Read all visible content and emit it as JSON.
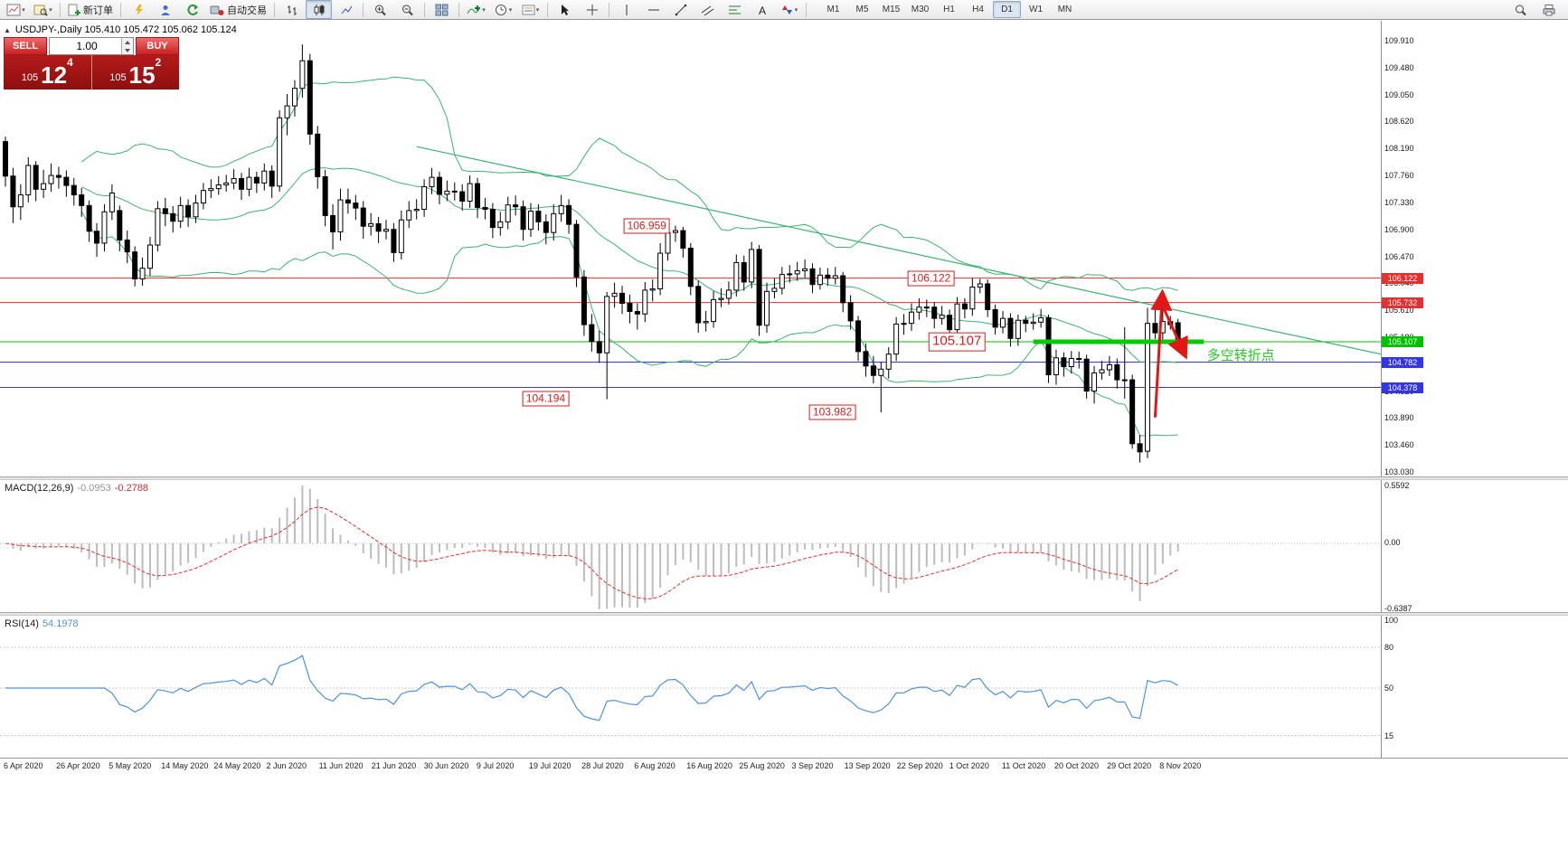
{
  "toolbar": {
    "new_order_label": "新订单",
    "autotrading_label": "自动交易",
    "timeframes": [
      "M1",
      "M5",
      "M15",
      "M30",
      "H1",
      "H4",
      "D1",
      "W1",
      "MN"
    ],
    "active_timeframe": "D1"
  },
  "chart": {
    "collapse_arrow": "▲",
    "info_line": "USDJPY-,Daily 105.410 105.472 105.062 105.124",
    "one_click": {
      "sell_label": "SELL",
      "buy_label": "BUY",
      "volume": "1.00",
      "sell_small": "105",
      "sell_big": "12",
      "sell_sup": "4",
      "buy_small": "105",
      "buy_big": "15",
      "buy_sup": "2"
    }
  },
  "macd": {
    "label": "MACD(12,26,9)",
    "value_main": "-0.0953",
    "value_signal": "-0.2788",
    "scale_top": "0.5592",
    "scale_zero": "0.00",
    "scale_bottom": "-0.6387"
  },
  "rsi": {
    "label": "RSI(14)",
    "value": "54.1978",
    "scale": [
      {
        "label": "100",
        "value": 100
      },
      {
        "label": "80",
        "value": 80
      },
      {
        "label": "50",
        "value": 50
      },
      {
        "label": "15",
        "value": 15
      }
    ],
    "levels": [
      80,
      50,
      15
    ]
  },
  "colors": {
    "bollinger": "#3CB371",
    "trendline": "#3CB371",
    "hline_red": "#e53030",
    "hline_blue": "#3535e8",
    "hline_green": "#00c300",
    "thick_green": "#00cc00",
    "annotation_red": "#d02020",
    "arrow_red": "#e01818",
    "macd_hist": "#bdbdbd",
    "macd_signal": "#e03030",
    "rsi_line": "#4f94d6",
    "trade_red": "#c92222",
    "price_panel_red": "#9e1515"
  },
  "chart_data": {
    "type": "candlestick",
    "symbol": "USDJPY-",
    "timeframe": "Daily",
    "y_max": 109.91,
    "y_min": 103.03,
    "y_ticks": [
      "109.910",
      "109.480",
      "109.050",
      "108.620",
      "108.190",
      "107.760",
      "107.330",
      "106.900",
      "106.470",
      "106.040",
      "105.610",
      "105.180",
      "104.750",
      "104.320",
      "103.890",
      "103.460",
      "103.030"
    ],
    "x_labels": [
      "6 Apr 2020",
      "26 Apr 2020",
      "5 May 2020",
      "14 May 2020",
      "24 May 2020",
      "2 Jun 2020",
      "11 Jun 2020",
      "21 Jun 2020",
      "30 Jun 2020",
      "9 Jul 2020",
      "19 Jul 2020",
      "28 Jul 2020",
      "6 Aug 2020",
      "16 Aug 2020",
      "25 Aug 2020",
      "3 Sep 2020",
      "13 Sep 2020",
      "22 Sep 2020",
      "1 Oct 2020",
      "11 Oct 2020",
      "20 Oct 2020",
      "29 Oct 2020",
      "8 Nov 2020"
    ],
    "candles": [
      [
        108.3,
        108.38,
        107.58,
        107.75
      ],
      [
        107.75,
        107.88,
        107.0,
        107.26
      ],
      [
        107.26,
        107.62,
        107.05,
        107.45
      ],
      [
        107.45,
        108.05,
        107.33,
        107.92
      ],
      [
        107.92,
        107.99,
        107.35,
        107.54
      ],
      [
        107.54,
        107.85,
        107.4,
        107.63
      ],
      [
        107.63,
        107.95,
        107.5,
        107.76
      ],
      [
        107.76,
        107.9,
        107.55,
        107.73
      ],
      [
        107.73,
        107.84,
        107.42,
        107.6
      ],
      [
        107.6,
        107.72,
        107.28,
        107.45
      ],
      [
        107.45,
        107.56,
        107.1,
        107.28
      ],
      [
        107.28,
        107.36,
        106.7,
        106.87
      ],
      [
        106.87,
        107.0,
        106.46,
        106.68
      ],
      [
        106.68,
        107.3,
        106.55,
        107.18
      ],
      [
        107.18,
        107.62,
        107.05,
        107.48
      ],
      [
        107.2,
        107.28,
        106.55,
        106.73
      ],
      [
        106.73,
        106.88,
        106.36,
        106.54
      ],
      [
        106.54,
        106.63,
        105.99,
        106.11
      ],
      [
        106.11,
        106.45,
        106.0,
        106.28
      ],
      [
        106.28,
        106.78,
        106.16,
        106.65
      ],
      [
        106.65,
        107.35,
        106.55,
        107.23
      ],
      [
        107.23,
        107.4,
        106.95,
        107.15
      ],
      [
        107.15,
        107.27,
        106.85,
        107.03
      ],
      [
        107.03,
        107.42,
        106.92,
        107.28
      ],
      [
        107.28,
        107.38,
        106.94,
        107.1
      ],
      [
        107.1,
        107.45,
        107.0,
        107.32
      ],
      [
        107.32,
        107.64,
        107.22,
        107.52
      ],
      [
        107.52,
        107.7,
        107.4,
        107.55
      ],
      [
        107.55,
        107.75,
        107.45,
        107.61
      ],
      [
        107.61,
        107.77,
        107.5,
        107.64
      ],
      [
        107.64,
        107.86,
        107.54,
        107.71
      ],
      [
        107.71,
        107.8,
        107.37,
        107.54
      ],
      [
        107.54,
        107.88,
        107.43,
        107.73
      ],
      [
        107.73,
        107.82,
        107.48,
        107.64
      ],
      [
        107.64,
        107.95,
        107.52,
        107.83
      ],
      [
        107.83,
        107.92,
        107.4,
        107.59
      ],
      [
        107.59,
        108.8,
        107.5,
        108.68
      ],
      [
        108.68,
        109.06,
        108.4,
        108.87
      ],
      [
        108.87,
        109.28,
        108.7,
        109.15
      ],
      [
        109.15,
        109.85,
        109.0,
        109.59
      ],
      [
        109.59,
        109.7,
        108.25,
        108.42
      ],
      [
        108.42,
        108.55,
        107.55,
        107.74
      ],
      [
        107.74,
        107.85,
        106.95,
        107.12
      ],
      [
        107.12,
        107.3,
        106.58,
        106.86
      ],
      [
        106.86,
        107.55,
        106.72,
        107.37
      ],
      [
        107.37,
        107.55,
        107.15,
        107.32
      ],
      [
        107.32,
        107.45,
        107.05,
        107.24
      ],
      [
        107.24,
        107.35,
        106.75,
        106.95
      ],
      [
        106.95,
        107.16,
        106.8,
        106.99
      ],
      [
        106.99,
        107.1,
        106.68,
        106.87
      ],
      [
        106.87,
        107.05,
        106.74,
        106.9
      ],
      [
        106.9,
        107.0,
        106.38,
        106.53
      ],
      [
        106.53,
        107.2,
        106.42,
        107.05
      ],
      [
        107.05,
        107.35,
        106.92,
        107.2
      ],
      [
        107.2,
        107.38,
        107.06,
        107.22
      ],
      [
        107.22,
        107.7,
        107.1,
        107.58
      ],
      [
        107.58,
        107.88,
        107.46,
        107.73
      ],
      [
        107.73,
        107.82,
        107.3,
        107.46
      ],
      [
        107.46,
        107.68,
        107.35,
        107.51
      ],
      [
        107.51,
        107.65,
        107.36,
        107.5
      ],
      [
        107.5,
        107.62,
        107.2,
        107.35
      ],
      [
        107.35,
        107.76,
        107.24,
        107.63
      ],
      [
        107.63,
        107.72,
        107.08,
        107.25
      ],
      [
        107.25,
        107.4,
        107.06,
        107.22
      ],
      [
        107.22,
        107.32,
        106.76,
        106.93
      ],
      [
        106.93,
        107.18,
        106.8,
        107.02
      ],
      [
        107.02,
        107.42,
        106.9,
        107.29
      ],
      [
        107.29,
        107.44,
        107.12,
        107.26
      ],
      [
        107.26,
        107.36,
        106.72,
        106.9
      ],
      [
        106.9,
        107.32,
        106.78,
        107.19
      ],
      [
        107.19,
        107.3,
        106.88,
        107.02
      ],
      [
        107.02,
        107.14,
        106.66,
        106.85
      ],
      [
        106.85,
        107.3,
        106.72,
        107.15
      ],
      [
        107.15,
        107.45,
        107.02,
        107.28
      ],
      [
        107.28,
        107.38,
        106.83,
        106.98
      ],
      [
        106.98,
        107.05,
        105.98,
        106.14
      ],
      [
        106.14,
        106.25,
        105.2,
        105.38
      ],
      [
        105.38,
        105.55,
        104.95,
        105.11
      ],
      [
        105.11,
        105.28,
        104.77,
        104.93
      ],
      [
        104.93,
        105.9,
        104.19,
        105.83
      ],
      [
        105.83,
        106.05,
        105.65,
        105.88
      ],
      [
        105.88,
        106.0,
        105.55,
        105.72
      ],
      [
        105.72,
        105.86,
        105.4,
        105.59
      ],
      [
        105.59,
        105.72,
        105.3,
        105.55
      ],
      [
        105.55,
        106.06,
        105.42,
        105.93
      ],
      [
        105.93,
        106.1,
        105.75,
        105.95
      ],
      [
        105.95,
        106.68,
        105.85,
        106.52
      ],
      [
        106.52,
        106.9,
        106.4,
        106.85
      ],
      [
        106.85,
        106.96,
        106.7,
        106.88
      ],
      [
        106.88,
        106.94,
        106.45,
        106.6
      ],
      [
        106.6,
        106.68,
        105.85,
        105.99
      ],
      [
        105.99,
        106.08,
        105.25,
        105.41
      ],
      [
        105.41,
        105.6,
        105.27,
        105.43
      ],
      [
        105.43,
        105.92,
        105.33,
        105.78
      ],
      [
        105.78,
        105.96,
        105.66,
        105.8
      ],
      [
        105.8,
        106.07,
        105.7,
        105.93
      ],
      [
        105.93,
        106.5,
        105.83,
        106.37
      ],
      [
        106.37,
        106.48,
        105.92,
        106.06
      ],
      [
        106.06,
        106.7,
        105.96,
        106.58
      ],
      [
        106.58,
        106.65,
        105.2,
        105.37
      ],
      [
        105.37,
        106.05,
        105.25,
        105.91
      ],
      [
        105.91,
        106.12,
        105.8,
        105.96
      ],
      [
        105.96,
        106.3,
        105.86,
        106.18
      ],
      [
        106.18,
        106.33,
        106.05,
        106.19
      ],
      [
        106.19,
        106.38,
        106.08,
        106.24
      ],
      [
        106.24,
        106.42,
        106.12,
        106.27
      ],
      [
        106.27,
        106.36,
        105.88,
        106.02
      ],
      [
        106.02,
        106.29,
        105.94,
        106.17
      ],
      [
        106.17,
        106.28,
        106.0,
        106.12
      ],
      [
        106.12,
        106.3,
        106.02,
        106.16
      ],
      [
        106.16,
        106.22,
        105.58,
        105.73
      ],
      [
        105.73,
        105.85,
        105.3,
        105.44
      ],
      [
        105.44,
        105.52,
        104.8,
        104.95
      ],
      [
        104.95,
        105.08,
        104.55,
        104.72
      ],
      [
        104.72,
        104.88,
        104.44,
        104.57
      ],
      [
        104.57,
        104.78,
        103.98,
        104.67
      ],
      [
        104.67,
        105.02,
        104.52,
        104.91
      ],
      [
        104.91,
        105.5,
        104.8,
        105.39
      ],
      [
        105.39,
        105.55,
        105.22,
        105.4
      ],
      [
        105.4,
        105.72,
        105.28,
        105.58
      ],
      [
        105.58,
        105.8,
        105.46,
        105.66
      ],
      [
        105.66,
        105.78,
        105.5,
        105.66
      ],
      [
        105.66,
        105.74,
        105.32,
        105.48
      ],
      [
        105.48,
        105.68,
        105.38,
        105.53
      ],
      [
        105.53,
        105.62,
        105.15,
        105.3
      ],
      [
        105.3,
        105.82,
        105.2,
        105.71
      ],
      [
        105.71,
        105.8,
        105.48,
        105.63
      ],
      [
        105.63,
        106.12,
        105.52,
        105.98
      ],
      [
        105.98,
        106.11,
        105.88,
        106.03
      ],
      [
        106.03,
        106.1,
        105.5,
        105.62
      ],
      [
        105.62,
        105.7,
        105.22,
        105.34
      ],
      [
        105.34,
        105.6,
        105.24,
        105.48
      ],
      [
        105.48,
        105.56,
        105.03,
        105.16
      ],
      [
        105.16,
        105.54,
        105.04,
        105.45
      ],
      [
        105.45,
        105.52,
        105.26,
        105.4
      ],
      [
        105.4,
        105.56,
        105.3,
        105.42
      ],
      [
        105.42,
        105.63,
        105.33,
        105.49
      ],
      [
        105.49,
        105.54,
        104.45,
        104.58
      ],
      [
        104.58,
        104.98,
        104.42,
        104.85
      ],
      [
        104.85,
        104.94,
        104.55,
        104.71
      ],
      [
        104.71,
        104.96,
        104.6,
        104.84
      ],
      [
        104.84,
        104.95,
        104.68,
        104.83
      ],
      [
        104.83,
        104.9,
        104.2,
        104.32
      ],
      [
        104.32,
        104.72,
        104.12,
        104.61
      ],
      [
        104.61,
        104.8,
        104.5,
        104.66
      ],
      [
        104.66,
        104.88,
        104.56,
        104.74
      ],
      [
        104.74,
        104.84,
        104.36,
        104.5
      ],
      [
        104.5,
        105.34,
        104.2,
        104.5
      ],
      [
        104.5,
        104.58,
        103.4,
        103.48
      ],
      [
        103.48,
        103.62,
        103.18,
        103.35
      ],
      [
        103.36,
        105.65,
        103.25,
        105.4
      ],
      [
        105.4,
        105.62,
        105.15,
        105.25
      ],
      [
        105.25,
        105.67,
        105.12,
        105.43
      ],
      [
        105.43,
        105.52,
        105.3,
        105.38
      ],
      [
        105.41,
        105.472,
        105.062,
        105.124
      ]
    ],
    "hlines": [
      {
        "price": 106.122,
        "color": "#e53030",
        "label": "106.122"
      },
      {
        "price": 105.732,
        "color": "#e53030",
        "label": "105.732"
      },
      {
        "price": 105.107,
        "color": "#00c300",
        "label": "105.107"
      },
      {
        "price": 104.782,
        "color": "#3535e8",
        "label": "104.782"
      },
      {
        "price": 104.378,
        "color": "#3535e8",
        "label": "104.378"
      }
    ],
    "thick_line": {
      "price": 105.107,
      "i1": 135,
      "i2": 157.4,
      "color": "#00cc00"
    },
    "trendline": {
      "i1": 54,
      "p1": 108.22,
      "i2": 181,
      "p2": 104.9,
      "color": "#3CB371"
    },
    "annotations": [
      {
        "text": "106.959",
        "i": 88,
        "price": 106.959,
        "dx": -6,
        "size": 12
      },
      {
        "text": "106.122",
        "i": 127,
        "price": 106.122,
        "dx": -20,
        "size": 12
      },
      {
        "text": "105.107",
        "i": 127,
        "price": 105.107,
        "dx": 14,
        "size": 15
      },
      {
        "text": "104.194",
        "i": 79,
        "price": 104.194,
        "dx": -42,
        "size": 12
      },
      {
        "text": "103.982",
        "i": 115,
        "price": 103.982,
        "dx": -28,
        "size": 12
      }
    ],
    "green_note": {
      "text": "多空转折点",
      "i": 157.8,
      "price": 104.93,
      "color": "#22cc22"
    },
    "arrows": [
      {
        "x1i": 151.0,
        "p1": 103.9,
        "x2i": 151.9,
        "p2": 105.78
      },
      {
        "x1i": 152.2,
        "p1": 105.62,
        "x2i": 154.6,
        "p2": 104.98
      }
    ]
  }
}
